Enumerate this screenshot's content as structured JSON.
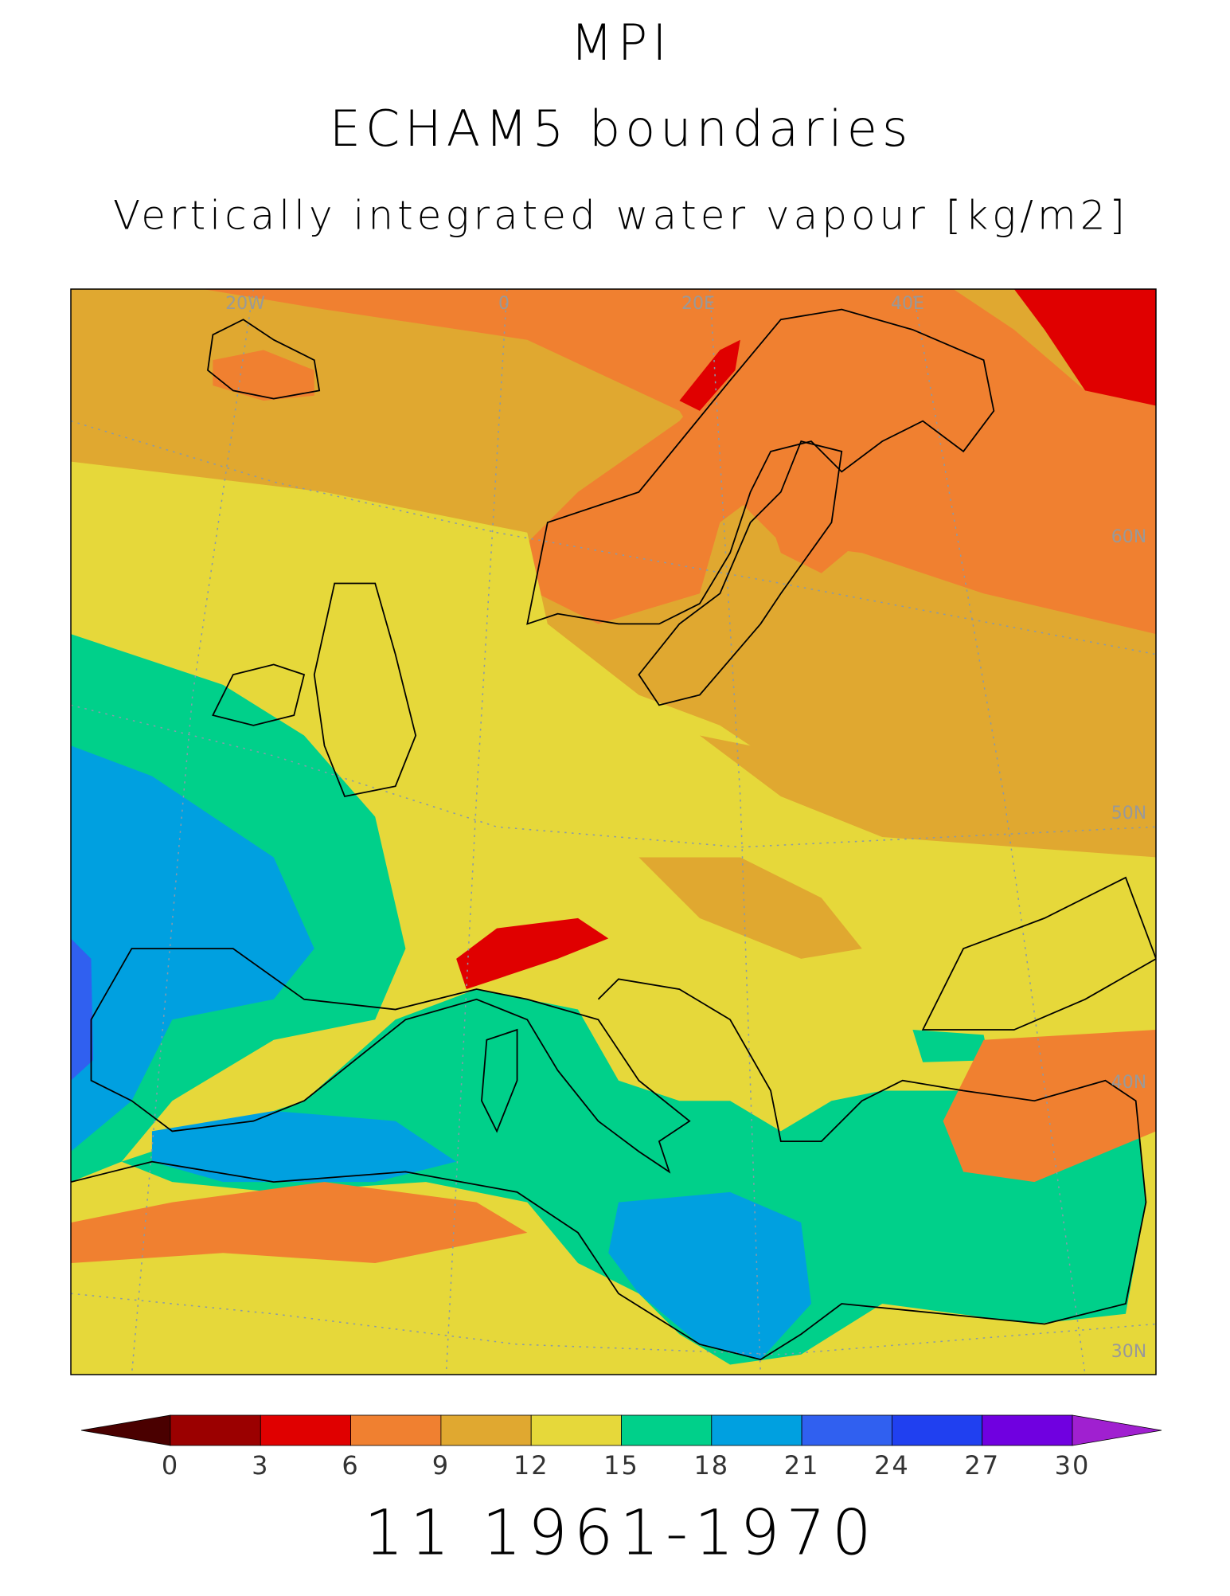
{
  "title_lines": [
    "MPI",
    "ECHAM5 boundaries"
  ],
  "subtitle": "Vertically integrated water vapour [kg/m2]",
  "map_labels": {
    "longitudes": [
      "20W",
      "0",
      "20E",
      "40E"
    ],
    "latitudes": [
      "60N",
      "50N",
      "40N",
      "30N"
    ]
  },
  "colorbar": {
    "levels": [
      0,
      3,
      6,
      9,
      12,
      15,
      18,
      21,
      24,
      27,
      30
    ],
    "colors": [
      "#4a0000",
      "#9b0000",
      "#e00000",
      "#f08030",
      "#e0a830",
      "#e6d83a",
      "#00d08a",
      "#00a0e0",
      "#3060f0",
      "#2040f0",
      "#7000e0",
      "#a020d0"
    ]
  },
  "footer": "11 1961-1970"
}
